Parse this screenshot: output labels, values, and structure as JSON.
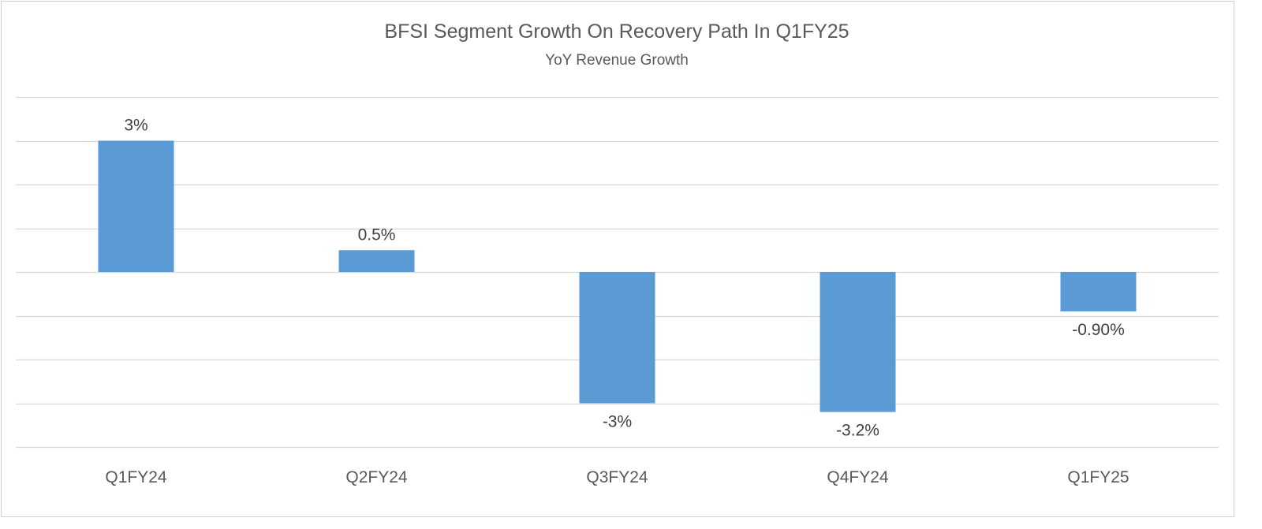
{
  "chart_data": {
    "type": "bar",
    "title": "BFSI Segment Growth On Recovery Path In Q1FY25",
    "subtitle": "YoY Revenue Growth",
    "categories": [
      "Q1FY24",
      "Q2FY24",
      "Q3FY24",
      "Q4FY24",
      "Q1FY25"
    ],
    "values": [
      3,
      0.5,
      -3,
      -3.2,
      -0.9
    ],
    "data_labels": [
      "3%",
      "0.5%",
      "-3%",
      "-3.2%",
      "-0.90%"
    ],
    "ylim": [
      -4,
      4
    ],
    "grid_step": 1,
    "grid": true,
    "legend": "none",
    "bar_color": "#5b9bd5",
    "grid_color": "#d9d9d9"
  }
}
